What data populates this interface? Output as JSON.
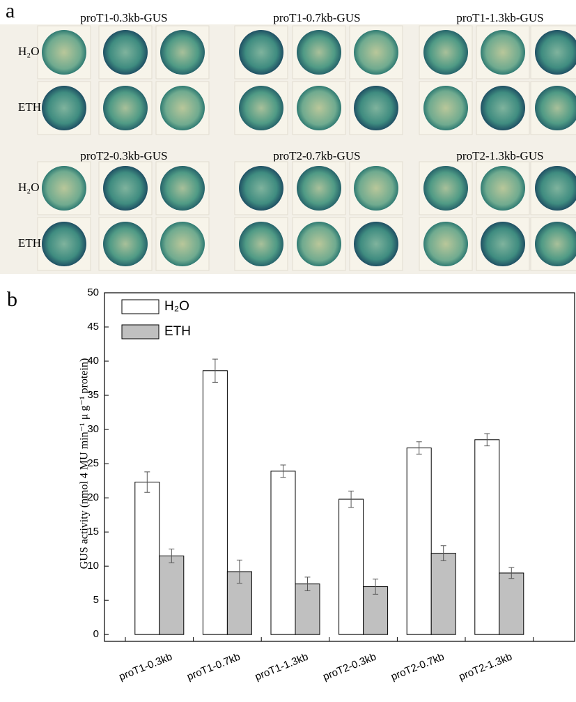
{
  "panel_a": {
    "label": "a",
    "groups": [
      "proT1-0.3kb-GUS",
      "proT1-0.7kb-GUS",
      "proT1-1.3kb-GUS",
      "proT2-0.3kb-GUS",
      "proT2-0.7kb-GUS",
      "proT2-1.3kb-GUS"
    ],
    "row_labels": [
      "H₂O",
      "ETH"
    ]
  },
  "chart_data": {
    "type": "bar",
    "panel_label": "b",
    "y_label": "GUS activity (nmol 4 MU min⁻¹ μ g⁻¹ protein)",
    "categories": [
      "proT1-0.3kb",
      "proT1-0.7kb",
      "proT1-1.3kb",
      "proT2-0.3kb",
      "proT2-0.7kb",
      "proT2-1.3kb"
    ],
    "series": [
      {
        "name": "H₂O",
        "color": "#ffffff",
        "values": [
          22.3,
          38.6,
          23.9,
          19.8,
          27.3,
          28.5
        ],
        "errors": [
          1.5,
          1.7,
          0.9,
          1.2,
          0.9,
          0.9
        ]
      },
      {
        "name": "ETH",
        "color": "#c0c0c0",
        "values": [
          11.5,
          9.2,
          7.4,
          7.0,
          11.9,
          9.0
        ],
        "errors": [
          1.0,
          1.7,
          1.0,
          1.1,
          1.1,
          0.8
        ]
      }
    ],
    "ylim": [
      -1,
      50
    ],
    "yticks": [
      0,
      5,
      10,
      15,
      20,
      25,
      30,
      35,
      40,
      45,
      50
    ],
    "legend": "upper-left"
  }
}
